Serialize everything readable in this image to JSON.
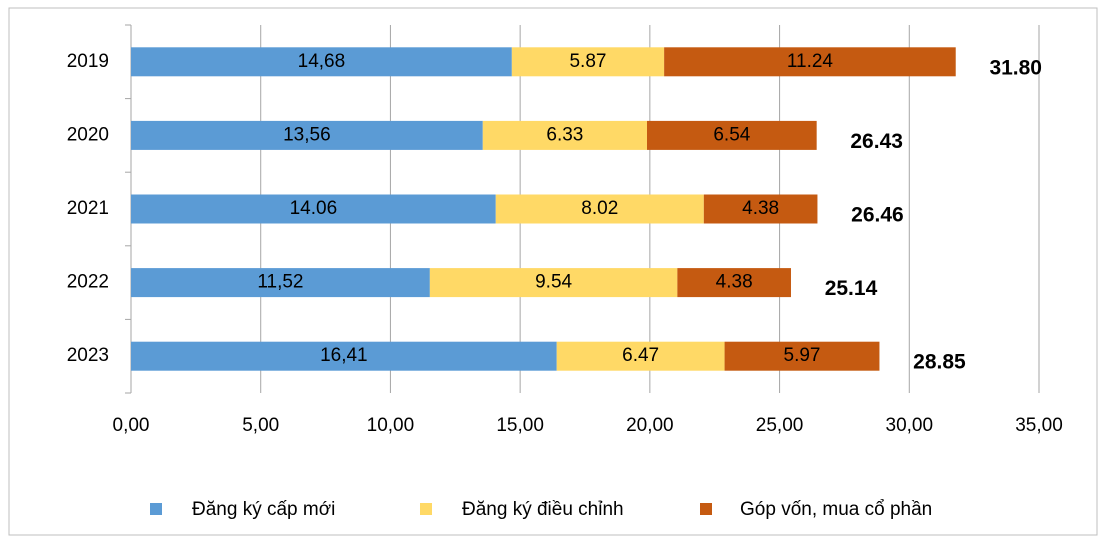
{
  "chart_data": {
    "type": "stacked-barh",
    "categories": [
      "2019",
      "2020",
      "2021",
      "2022",
      "2023"
    ],
    "series": [
      {
        "name": "Đăng ký cấp mới",
        "color": "#5b9bd5",
        "values": [
          14.68,
          13.56,
          14.06,
          11.52,
          16.41
        ],
        "value_labels": [
          "14,68",
          "13,56",
          "14.06",
          "11,52",
          "16,41"
        ]
      },
      {
        "name": "Đăng ký điều chỉnh",
        "color": "#ffd966",
        "values": [
          5.87,
          6.33,
          8.02,
          9.54,
          6.47
        ]
      },
      {
        "name": "Góp vốn, mua cổ phần",
        "color": "#c55a11",
        "values": [
          11.24,
          6.54,
          4.38,
          4.38,
          5.97
        ]
      }
    ],
    "totals": {
      "values": [
        31.8,
        26.43,
        26.46,
        25.14,
        28.85
      ],
      "value_labels": [
        "31.80",
        "26.43",
        "26.46",
        "25.14",
        "28.85"
      ]
    },
    "xlim": [
      0,
      35
    ],
    "xticks": [
      {
        "value": 0,
        "label": "0,00"
      },
      {
        "value": 5,
        "label": "5,00"
      },
      {
        "value": 10,
        "label": "10,00"
      },
      {
        "value": 15,
        "label": "15,00"
      },
      {
        "value": 20,
        "label": "20,00"
      },
      {
        "value": 25,
        "label": "25,00"
      },
      {
        "value": 30,
        "label": "30,00"
      },
      {
        "value": 35,
        "label": "35,00"
      }
    ],
    "grid": true,
    "legend": "bottom"
  }
}
